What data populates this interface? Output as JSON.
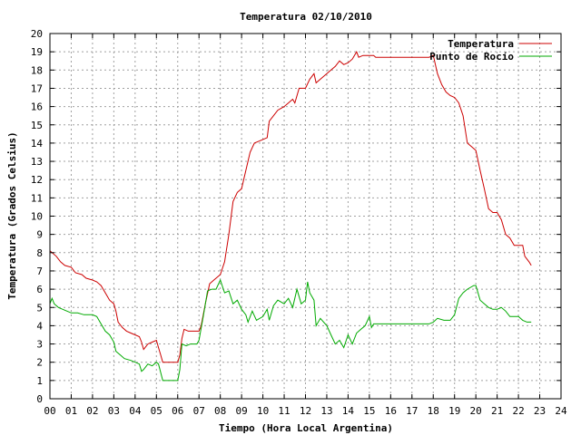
{
  "chart_data": {
    "type": "line",
    "title": "Temperatura 02/10/2010",
    "xlabel": "Tiempo (Hora Local Argentina)",
    "ylabel": "Temperatura (Grados Celsius)",
    "xlim": [
      0,
      24
    ],
    "ylim": [
      0,
      20
    ],
    "grid": true,
    "legend_position": "top-right",
    "x_ticks": [
      "00",
      "01",
      "02",
      "03",
      "04",
      "05",
      "06",
      "07",
      "08",
      "09",
      "10",
      "11",
      "12",
      "13",
      "14",
      "15",
      "16",
      "17",
      "18",
      "19",
      "20",
      "21",
      "22",
      "23",
      "24"
    ],
    "y_ticks": [
      "0",
      "1",
      "2",
      "3",
      "4",
      "5",
      "6",
      "7",
      "8",
      "9",
      "10",
      "11",
      "12",
      "13",
      "14",
      "15",
      "16",
      "17",
      "18",
      "19",
      "20"
    ],
    "series": [
      {
        "name": "Temperatura",
        "color": "#cc0000",
        "points": [
          [
            0.0,
            8.1
          ],
          [
            0.3,
            7.8
          ],
          [
            0.5,
            7.5
          ],
          [
            0.7,
            7.3
          ],
          [
            1.0,
            7.2
          ],
          [
            1.2,
            6.9
          ],
          [
            1.5,
            6.8
          ],
          [
            1.7,
            6.6
          ],
          [
            2.0,
            6.5
          ],
          [
            2.2,
            6.4
          ],
          [
            2.4,
            6.2
          ],
          [
            2.6,
            5.8
          ],
          [
            2.8,
            5.4
          ],
          [
            3.0,
            5.2
          ],
          [
            3.1,
            4.8
          ],
          [
            3.2,
            4.2
          ],
          [
            3.4,
            3.9
          ],
          [
            3.6,
            3.7
          ],
          [
            3.8,
            3.6
          ],
          [
            4.0,
            3.5
          ],
          [
            4.2,
            3.4
          ],
          [
            4.3,
            3.1
          ],
          [
            4.4,
            2.7
          ],
          [
            4.6,
            3.0
          ],
          [
            4.8,
            3.1
          ],
          [
            5.0,
            3.2
          ],
          [
            5.1,
            2.8
          ],
          [
            5.2,
            2.4
          ],
          [
            5.3,
            2.0
          ],
          [
            5.5,
            2.0
          ],
          [
            5.7,
            2.0
          ],
          [
            6.0,
            2.0
          ],
          [
            6.1,
            2.4
          ],
          [
            6.2,
            3.3
          ],
          [
            6.3,
            3.8
          ],
          [
            6.5,
            3.7
          ],
          [
            6.7,
            3.7
          ],
          [
            7.0,
            3.7
          ],
          [
            7.1,
            4.0
          ],
          [
            7.3,
            5.2
          ],
          [
            7.5,
            6.3
          ],
          [
            7.7,
            6.5
          ],
          [
            8.0,
            6.8
          ],
          [
            8.2,
            7.5
          ],
          [
            8.4,
            9.0
          ],
          [
            8.6,
            10.8
          ],
          [
            8.8,
            11.3
          ],
          [
            9.0,
            11.5
          ],
          [
            9.2,
            12.5
          ],
          [
            9.4,
            13.5
          ],
          [
            9.6,
            14.0
          ],
          [
            9.8,
            14.1
          ],
          [
            10.0,
            14.2
          ],
          [
            10.2,
            14.3
          ],
          [
            10.3,
            15.2
          ],
          [
            10.5,
            15.5
          ],
          [
            10.7,
            15.8
          ],
          [
            11.0,
            16.0
          ],
          [
            11.2,
            16.2
          ],
          [
            11.4,
            16.4
          ],
          [
            11.5,
            16.2
          ],
          [
            11.7,
            17.0
          ],
          [
            12.0,
            17.0
          ],
          [
            12.2,
            17.5
          ],
          [
            12.4,
            17.8
          ],
          [
            12.5,
            17.3
          ],
          [
            12.7,
            17.5
          ],
          [
            13.0,
            17.8
          ],
          [
            13.2,
            18.0
          ],
          [
            13.4,
            18.2
          ],
          [
            13.6,
            18.5
          ],
          [
            13.8,
            18.3
          ],
          [
            14.0,
            18.4
          ],
          [
            14.2,
            18.6
          ],
          [
            14.4,
            19.0
          ],
          [
            14.5,
            18.7
          ],
          [
            14.7,
            18.8
          ],
          [
            15.0,
            18.8
          ],
          [
            15.2,
            18.8
          ],
          [
            15.3,
            18.7
          ],
          [
            16.0,
            18.7
          ],
          [
            17.0,
            18.7
          ],
          [
            17.8,
            18.7
          ],
          [
            18.0,
            18.8
          ],
          [
            18.2,
            17.8
          ],
          [
            18.4,
            17.2
          ],
          [
            18.6,
            16.8
          ],
          [
            18.8,
            16.6
          ],
          [
            19.0,
            16.5
          ],
          [
            19.2,
            16.2
          ],
          [
            19.4,
            15.5
          ],
          [
            19.6,
            14.0
          ],
          [
            19.8,
            13.8
          ],
          [
            20.0,
            13.6
          ],
          [
            20.2,
            12.5
          ],
          [
            20.4,
            11.5
          ],
          [
            20.6,
            10.4
          ],
          [
            20.8,
            10.2
          ],
          [
            21.0,
            10.2
          ],
          [
            21.2,
            9.8
          ],
          [
            21.4,
            9.0
          ],
          [
            21.6,
            8.8
          ],
          [
            21.8,
            8.4
          ],
          [
            22.0,
            8.4
          ],
          [
            22.2,
            8.4
          ],
          [
            22.3,
            7.8
          ],
          [
            22.5,
            7.5
          ],
          [
            22.6,
            7.3
          ]
        ]
      },
      {
        "name": "Punto de Rocío",
        "color": "#00aa00",
        "points": [
          [
            0.0,
            5.2
          ],
          [
            0.1,
            5.5
          ],
          [
            0.2,
            5.2
          ],
          [
            0.4,
            5.0
          ],
          [
            0.6,
            4.9
          ],
          [
            0.8,
            4.8
          ],
          [
            1.0,
            4.7
          ],
          [
            1.3,
            4.7
          ],
          [
            1.6,
            4.6
          ],
          [
            2.0,
            4.6
          ],
          [
            2.2,
            4.5
          ],
          [
            2.4,
            4.1
          ],
          [
            2.6,
            3.7
          ],
          [
            2.8,
            3.5
          ],
          [
            3.0,
            3.1
          ],
          [
            3.1,
            2.6
          ],
          [
            3.3,
            2.4
          ],
          [
            3.5,
            2.2
          ],
          [
            3.8,
            2.1
          ],
          [
            4.0,
            2.0
          ],
          [
            4.2,
            1.9
          ],
          [
            4.3,
            1.5
          ],
          [
            4.4,
            1.6
          ],
          [
            4.6,
            1.9
          ],
          [
            4.8,
            1.8
          ],
          [
            5.0,
            2.0
          ],
          [
            5.1,
            1.9
          ],
          [
            5.3,
            1.0
          ],
          [
            5.5,
            1.0
          ],
          [
            5.8,
            1.0
          ],
          [
            6.0,
            1.0
          ],
          [
            6.1,
            1.6
          ],
          [
            6.2,
            3.0
          ],
          [
            6.4,
            2.9
          ],
          [
            6.6,
            3.0
          ],
          [
            6.9,
            3.0
          ],
          [
            7.0,
            3.2
          ],
          [
            7.2,
            4.5
          ],
          [
            7.4,
            5.9
          ],
          [
            7.6,
            6.0
          ],
          [
            7.8,
            6.0
          ],
          [
            8.0,
            6.5
          ],
          [
            8.2,
            5.8
          ],
          [
            8.4,
            5.9
          ],
          [
            8.6,
            5.2
          ],
          [
            8.8,
            5.4
          ],
          [
            9.0,
            4.9
          ],
          [
            9.2,
            4.6
          ],
          [
            9.3,
            4.2
          ],
          [
            9.5,
            4.8
          ],
          [
            9.7,
            4.3
          ],
          [
            10.0,
            4.5
          ],
          [
            10.2,
            4.9
          ],
          [
            10.3,
            4.3
          ],
          [
            10.5,
            5.1
          ],
          [
            10.7,
            5.4
          ],
          [
            11.0,
            5.2
          ],
          [
            11.2,
            5.5
          ],
          [
            11.4,
            5.0
          ],
          [
            11.6,
            6.0
          ],
          [
            11.8,
            5.2
          ],
          [
            12.0,
            5.4
          ],
          [
            12.1,
            6.4
          ],
          [
            12.2,
            5.8
          ],
          [
            12.4,
            5.4
          ],
          [
            12.5,
            4.0
          ],
          [
            12.7,
            4.4
          ],
          [
            13.0,
            4.0
          ],
          [
            13.2,
            3.5
          ],
          [
            13.4,
            3.0
          ],
          [
            13.6,
            3.2
          ],
          [
            13.8,
            2.8
          ],
          [
            14.0,
            3.5
          ],
          [
            14.2,
            3.0
          ],
          [
            14.4,
            3.6
          ],
          [
            14.6,
            3.8
          ],
          [
            14.8,
            4.0
          ],
          [
            15.0,
            4.5
          ],
          [
            15.1,
            3.9
          ],
          [
            15.2,
            4.1
          ],
          [
            15.5,
            4.1
          ],
          [
            16.0,
            4.1
          ],
          [
            17.0,
            4.1
          ],
          [
            17.8,
            4.1
          ],
          [
            18.0,
            4.2
          ],
          [
            18.2,
            4.4
          ],
          [
            18.5,
            4.3
          ],
          [
            18.8,
            4.3
          ],
          [
            19.0,
            4.6
          ],
          [
            19.2,
            5.5
          ],
          [
            19.4,
            5.8
          ],
          [
            19.6,
            6.0
          ],
          [
            19.9,
            6.2
          ],
          [
            20.0,
            6.2
          ],
          [
            20.2,
            5.4
          ],
          [
            20.4,
            5.2
          ],
          [
            20.6,
            5.0
          ],
          [
            20.8,
            4.9
          ],
          [
            21.0,
            4.9
          ],
          [
            21.2,
            5.0
          ],
          [
            21.4,
            4.8
          ],
          [
            21.6,
            4.5
          ],
          [
            21.8,
            4.5
          ],
          [
            22.0,
            4.5
          ],
          [
            22.2,
            4.3
          ],
          [
            22.4,
            4.2
          ],
          [
            22.6,
            4.2
          ]
        ]
      }
    ]
  }
}
